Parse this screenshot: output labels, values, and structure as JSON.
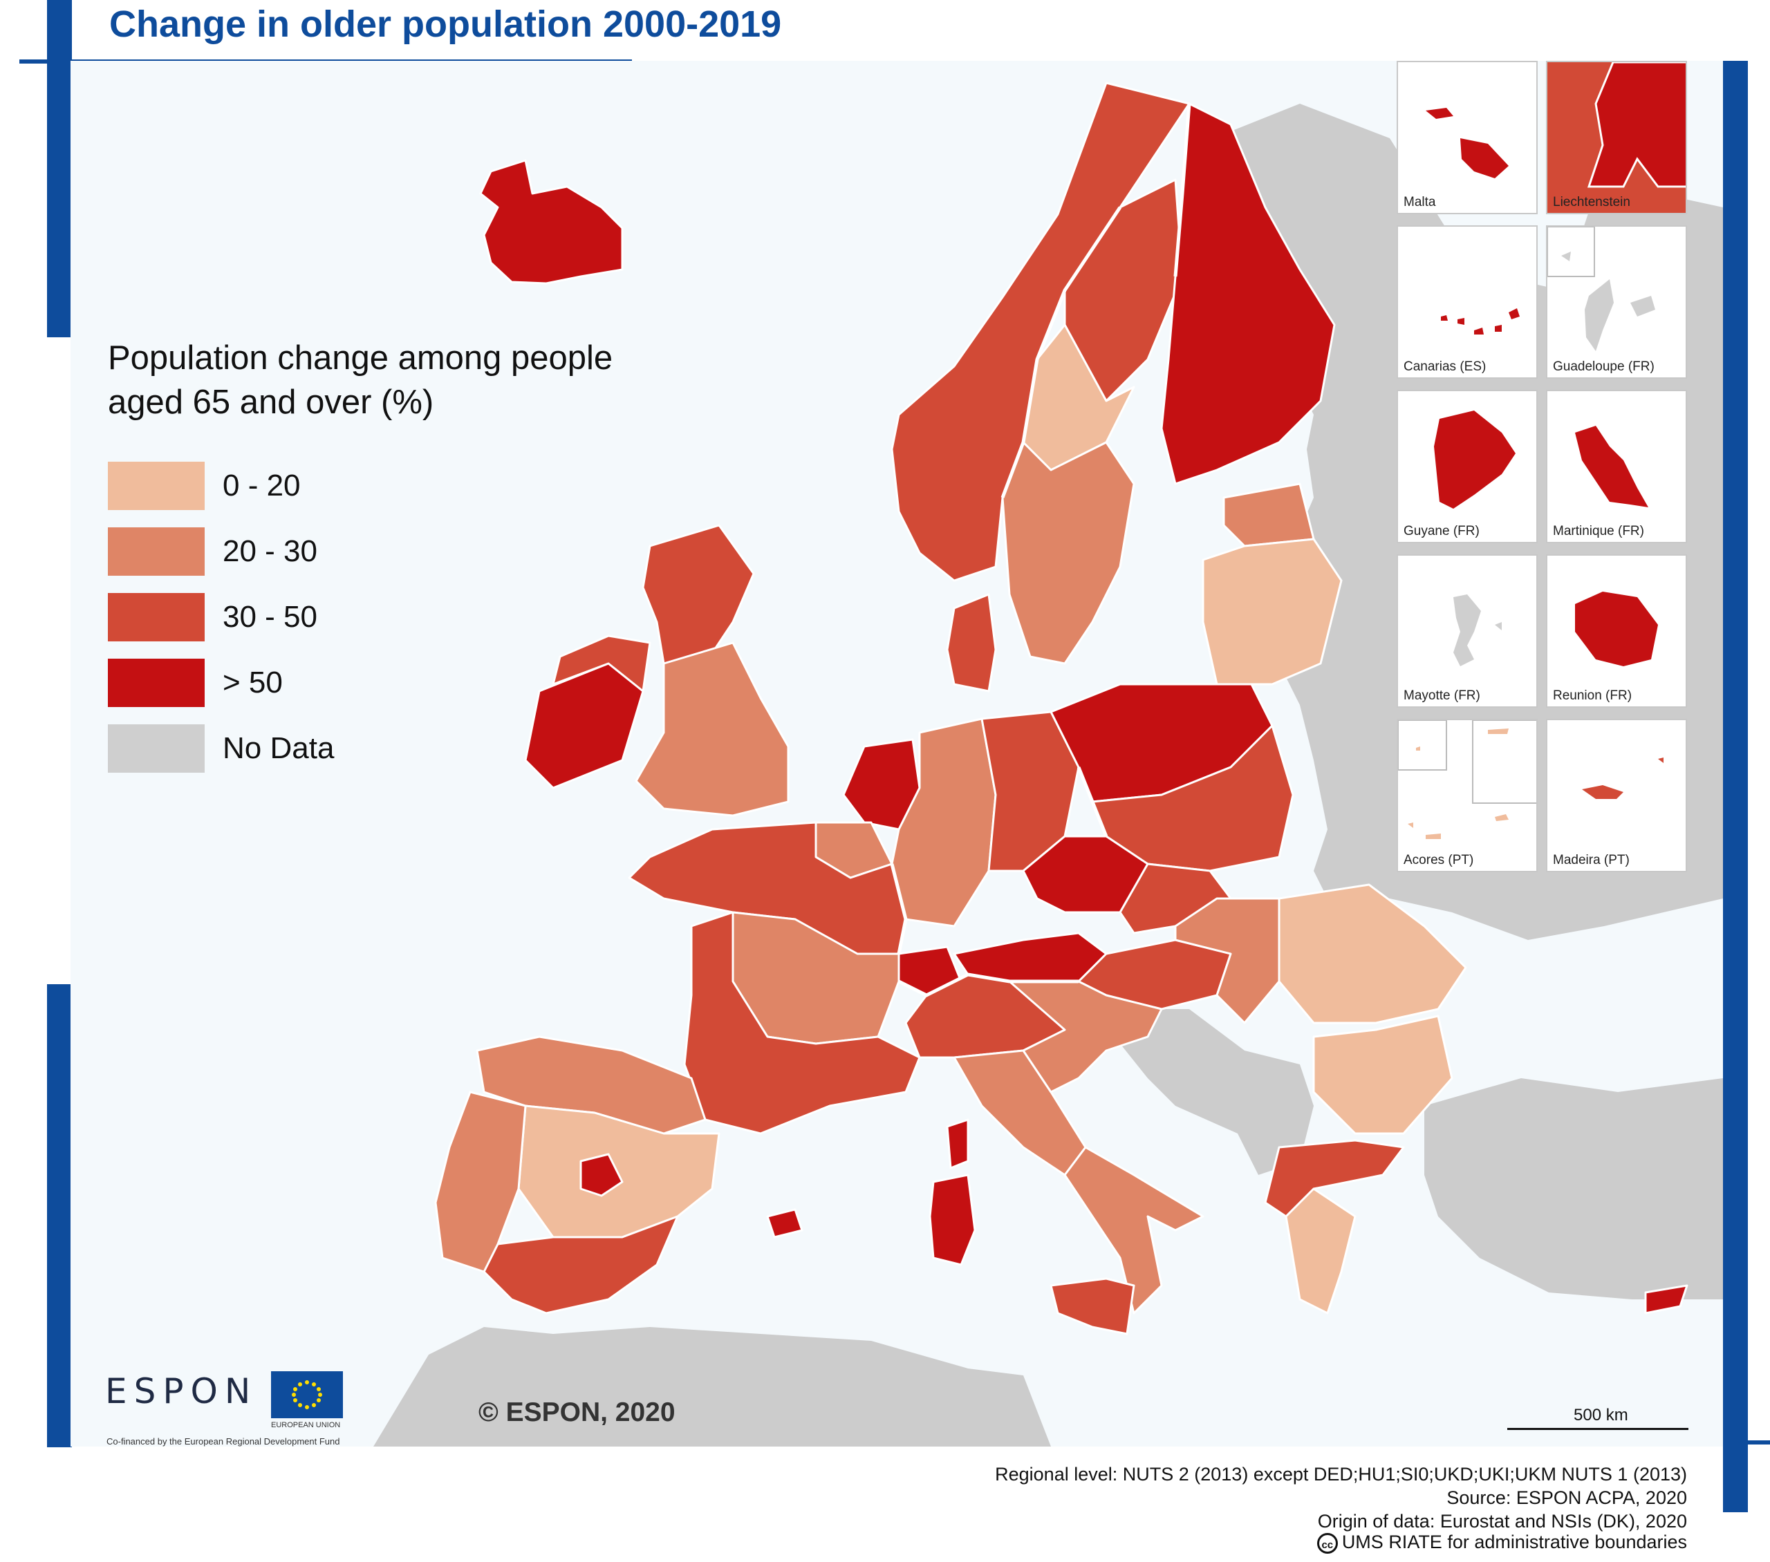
{
  "title": "Change in older population 2000-2019",
  "legend": {
    "title_line1": "Population change among people",
    "title_line2": "aged 65 and over (%)",
    "items": [
      {
        "label": "0 - 20",
        "color": "#f0bc9c"
      },
      {
        "label": "20 - 30",
        "color": "#df8566"
      },
      {
        "label": "30 - 50",
        "color": "#d24a36"
      },
      {
        "label": "> 50",
        "color": "#c41012"
      },
      {
        "label": "No Data",
        "color": "#cfcfcf"
      }
    ]
  },
  "colors": {
    "brand_blue": "#0e4c9c",
    "sea": "#f4f9fc",
    "non_espon_land": "#cccccc",
    "border": "#ffffff"
  },
  "insets": [
    {
      "label": "Malta",
      "class": "> 50"
    },
    {
      "label": "Liechtenstein",
      "class": "> 50"
    },
    {
      "label": "Canarias (ES)",
      "class": "> 50"
    },
    {
      "label": "Guadeloupe (FR)",
      "class": "No Data"
    },
    {
      "label": "Guyane (FR)",
      "class": "> 50"
    },
    {
      "label": "Martinique (FR)",
      "class": "> 50"
    },
    {
      "label": "Mayotte (FR)",
      "class": "No Data"
    },
    {
      "label": "Reunion (FR)",
      "class": "> 50"
    },
    {
      "label": "Acores (PT)",
      "class": "0 - 20"
    },
    {
      "label": "Madeira (PT)",
      "class": "30 - 50"
    }
  ],
  "copyright": "© ESPON, 2020",
  "scale": {
    "label": "500 km"
  },
  "logos": {
    "espon": "ESPON",
    "eu_label": "EUROPEAN UNION",
    "cofinanced": "Co-financed by the European Regional Development Fund"
  },
  "footer": {
    "line1": "Regional level: NUTS 2 (2013) except DED;HU1;SI0;UKD;UKI;UKM NUTS 1 (2013)",
    "line2": "Source: ESPON ACPA, 2020",
    "line3": "Origin of data: Eurostat and NSIs (DK), 2020",
    "line4": "UMS RIATE for administrative boundaries",
    "cc_symbol": "cc"
  },
  "map_regions": [
    {
      "name": "iceland",
      "class": "> 50"
    },
    {
      "name": "norway",
      "class": "30 - 50"
    },
    {
      "name": "sweden-north",
      "class": "30 - 50"
    },
    {
      "name": "sweden-central",
      "class": "0 - 20"
    },
    {
      "name": "sweden-south",
      "class": "20 - 30"
    },
    {
      "name": "finland",
      "class": "> 50"
    },
    {
      "name": "baltics-estonia",
      "class": "20 - 30"
    },
    {
      "name": "baltics-latvia-lithuania",
      "class": "0 - 20"
    },
    {
      "name": "ireland-south",
      "class": "> 50"
    },
    {
      "name": "ireland-north",
      "class": "30 - 50"
    },
    {
      "name": "uk-scotland",
      "class": "30 - 50"
    },
    {
      "name": "uk-england",
      "class": "20 - 30"
    },
    {
      "name": "denmark",
      "class": "30 - 50"
    },
    {
      "name": "netherlands",
      "class": "> 50"
    },
    {
      "name": "belgium",
      "class": "20 - 30"
    },
    {
      "name": "germany-west",
      "class": "20 - 30"
    },
    {
      "name": "germany-east",
      "class": "30 - 50"
    },
    {
      "name": "poland-north",
      "class": "> 50"
    },
    {
      "name": "poland-south",
      "class": "30 - 50"
    },
    {
      "name": "czechia",
      "class": "> 50"
    },
    {
      "name": "austria",
      "class": "> 50"
    },
    {
      "name": "switzerland",
      "class": "> 50"
    },
    {
      "name": "france-north",
      "class": "30 - 50"
    },
    {
      "name": "france-central",
      "class": "20 - 30"
    },
    {
      "name": "france-south",
      "class": "30 - 50"
    },
    {
      "name": "spain-north",
      "class": "20 - 30"
    },
    {
      "name": "spain-central",
      "class": "0 - 20"
    },
    {
      "name": "spain-madrid",
      "class": "> 50"
    },
    {
      "name": "spain-south",
      "class": "30 - 50"
    },
    {
      "name": "portugal",
      "class": "20 - 30"
    },
    {
      "name": "italy-north",
      "class": "30 - 50"
    },
    {
      "name": "italy-central",
      "class": "20 - 30"
    },
    {
      "name": "italy-south",
      "class": "30 - 50"
    },
    {
      "name": "sardinia",
      "class": "> 50"
    },
    {
      "name": "corsica",
      "class": "> 50"
    },
    {
      "name": "sicily",
      "class": "30 - 50"
    },
    {
      "name": "hungary",
      "class": "30 - 50"
    },
    {
      "name": "slovakia",
      "class": "30 - 50"
    },
    {
      "name": "romania-west",
      "class": "20 - 30"
    },
    {
      "name": "romania-east",
      "class": "0 - 20"
    },
    {
      "name": "bulgaria",
      "class": "0 - 20"
    },
    {
      "name": "greece-north",
      "class": "30 - 50"
    },
    {
      "name": "greece-south",
      "class": "0 - 20"
    },
    {
      "name": "cyprus",
      "class": "> 50"
    },
    {
      "name": "balearics",
      "class": "> 50"
    },
    {
      "name": "slovenia-croatia",
      "class": "20 - 30"
    }
  ]
}
